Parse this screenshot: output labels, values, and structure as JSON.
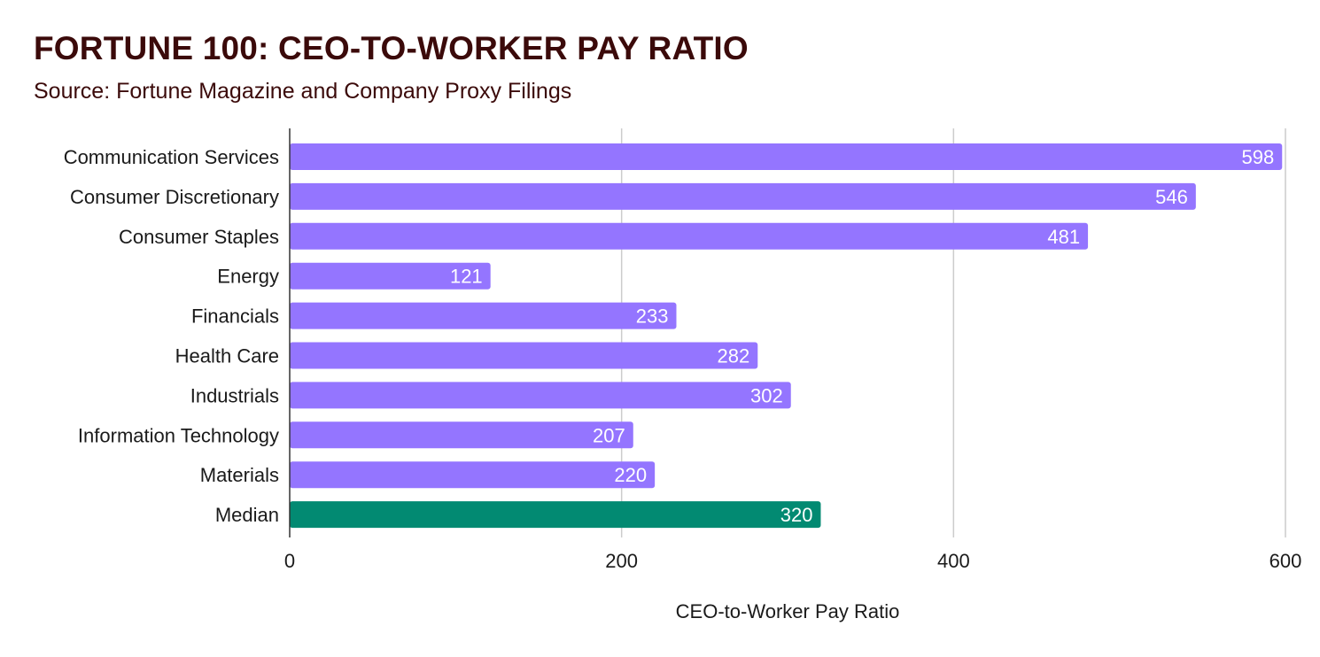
{
  "header": {
    "title": "FORTUNE 100: CEO-TO-WORKER PAY RATIO",
    "subtitle": "Source: Fortune Magazine and Company Proxy Filings"
  },
  "colors": {
    "bar": "#9475ff",
    "highlight": "#028a72",
    "grid": "#cccccc",
    "axis": "#333333",
    "title": "#3b0a0a"
  },
  "chart_data": {
    "type": "bar",
    "orientation": "horizontal",
    "title": "FORTUNE 100: CEO-TO-WORKER PAY RATIO",
    "subtitle": "Source: Fortune Magazine and Company Proxy Filings",
    "xlabel": "CEO-to-Worker Pay Ratio",
    "ylabel": "",
    "categories": [
      "Communication Services",
      "Consumer Discretionary",
      "Consumer Staples",
      "Energy",
      "Financials",
      "Health Care",
      "Industrials",
      "Information Technology",
      "Materials",
      "Median"
    ],
    "values": [
      598,
      546,
      481,
      121,
      233,
      282,
      302,
      207,
      220,
      320
    ],
    "highlight_category": "Median",
    "xlim": [
      0,
      600
    ],
    "xticks": [
      0,
      200,
      400,
      600
    ],
    "grid": true,
    "legend": "none"
  }
}
